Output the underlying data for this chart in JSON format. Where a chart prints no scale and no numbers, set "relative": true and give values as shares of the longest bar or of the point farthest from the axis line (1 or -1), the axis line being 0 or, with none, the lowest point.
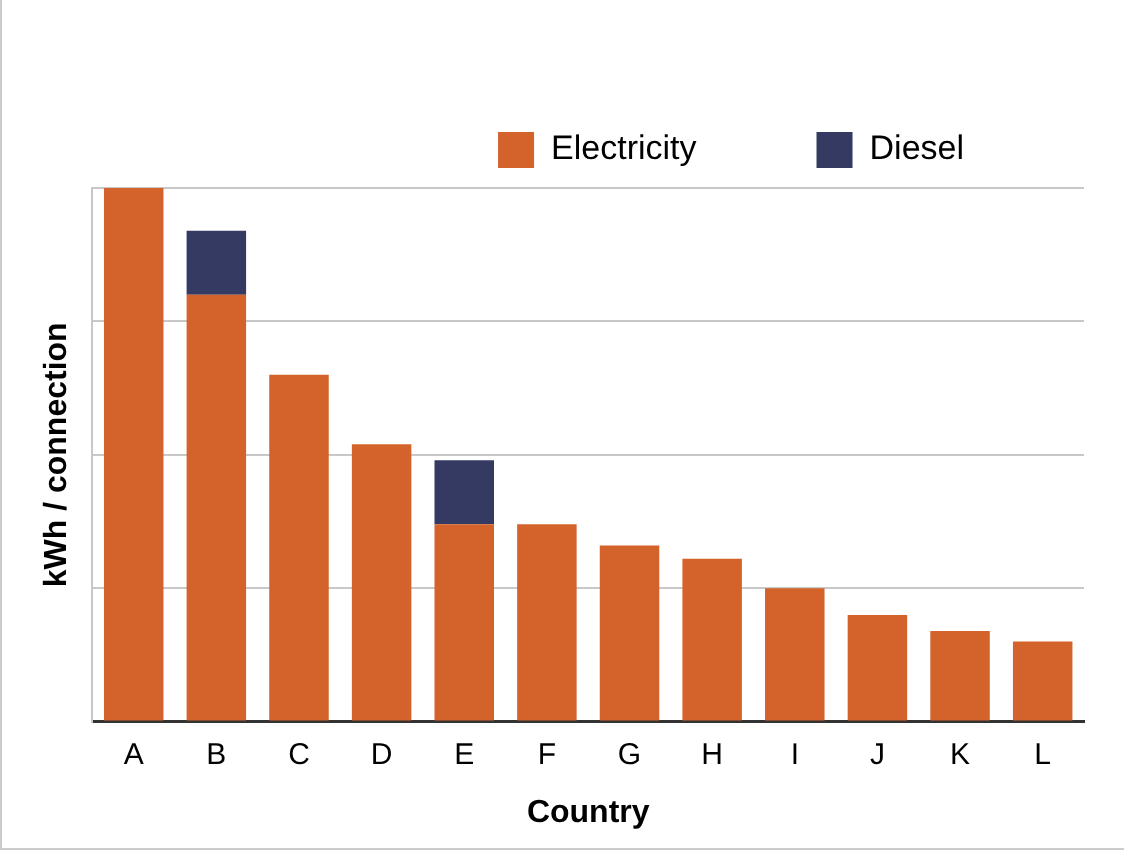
{
  "chart_data": {
    "type": "bar",
    "stacked": true,
    "relative": true,
    "xlabel": "Country",
    "ylabel": "kWh / connection",
    "categories": [
      "A",
      "B",
      "C",
      "D",
      "E",
      "F",
      "G",
      "H",
      "I",
      "J",
      "K",
      "L"
    ],
    "series": [
      {
        "name": "Electricity",
        "color": "#d4622b",
        "values": [
          1,
          0.8,
          0.65,
          0.52,
          0.37,
          0.37,
          0.33,
          0.305,
          0.25,
          0.2,
          0.17,
          0.15
        ]
      },
      {
        "name": "Diesel",
        "color": "#353a63",
        "values": [
          null,
          0.12,
          null,
          null,
          0.12,
          null,
          null,
          null,
          null,
          null,
          null,
          null
        ]
      }
    ],
    "grid": "y",
    "legend": "top right"
  }
}
